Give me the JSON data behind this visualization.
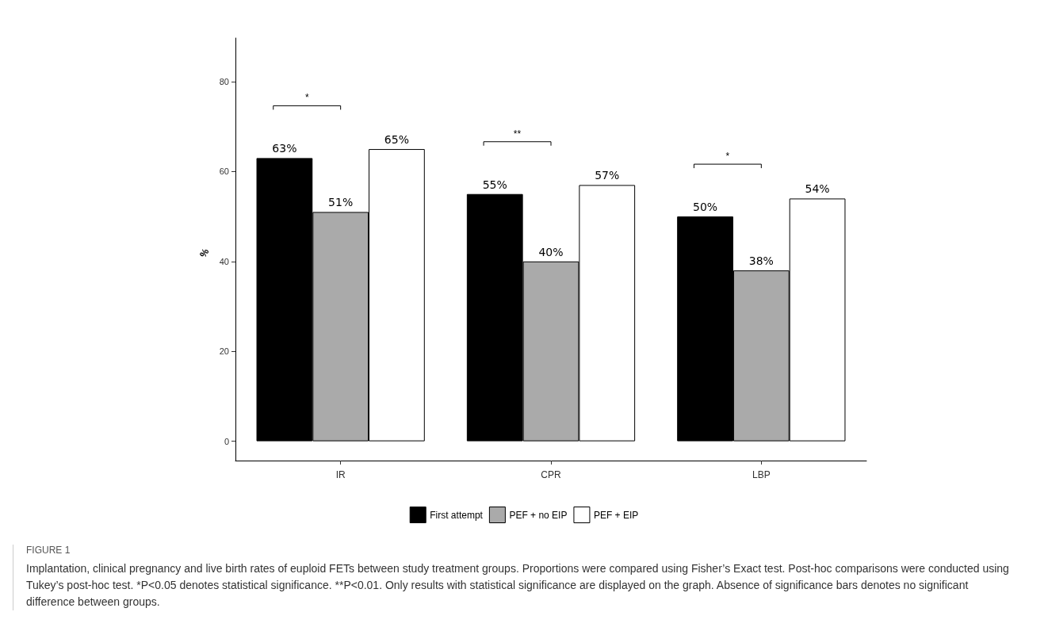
{
  "chart_data": {
    "type": "bar",
    "ylabel": "%",
    "categories": [
      "IR",
      "CPR",
      "LBP"
    ],
    "series": [
      {
        "name": "First attempt",
        "color": "#000000",
        "values": [
          63,
          55,
          50
        ],
        "value_labels": [
          "63%",
          "55%",
          "50%"
        ]
      },
      {
        "name": "PEF + no EIP",
        "color": "#aaaaaa",
        "values": [
          51,
          40,
          38
        ],
        "value_labels": [
          "51%",
          "40%",
          "38%"
        ]
      },
      {
        "name": "PEF + EIP",
        "color": "#ffffff",
        "values": [
          65,
          57,
          54
        ],
        "value_labels": [
          "65%",
          "57%",
          "54%"
        ]
      }
    ],
    "ylim": [
      -4.3,
      89.7
    ],
    "yticks": [
      0,
      20,
      40,
      60,
      80
    ],
    "grid": false,
    "legend": "bottom",
    "annotations": [
      "*",
      "**",
      "*",
      "FIGURE 1",
      "Implantation, clinical pregnancy and live birth rates of euploid FETs between study treatment groups. Proportions were compared using Fisher’s Exact test. Post-hoc comparisons were conducted using Tukey’s post-hoc test. *P<0.05 denotes statistical significance. **P<0.01. Only results with statistical significance are displayed on the graph. Absence of significance bars denotes no significant difference between groups."
    ]
  }
}
